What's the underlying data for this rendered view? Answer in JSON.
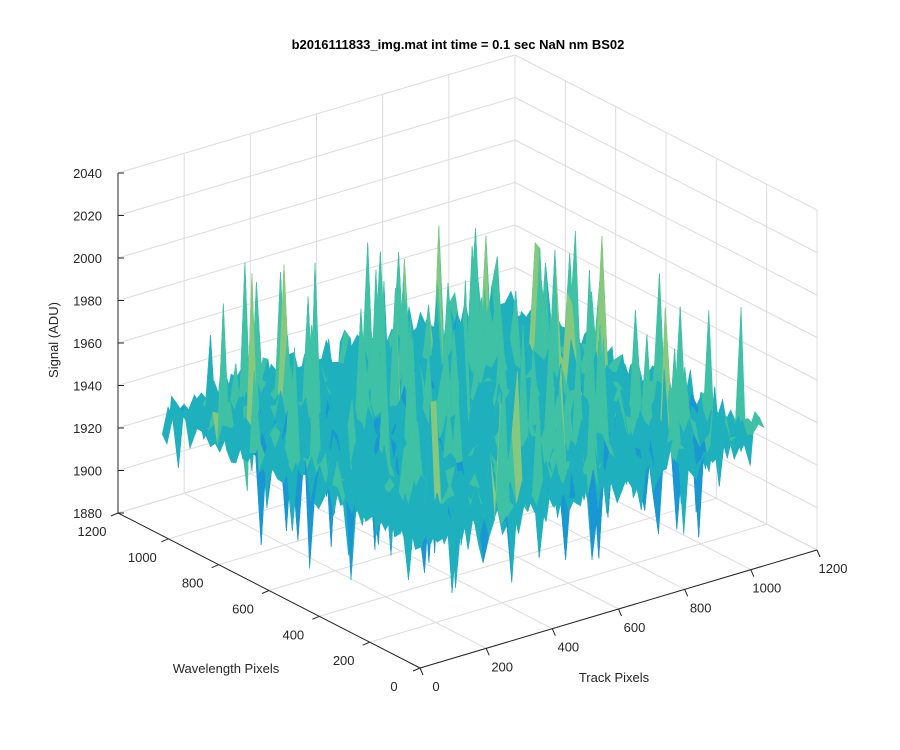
{
  "chart_data": {
    "type": "surface",
    "title": "b2016111833_img.mat int time = 0.1 sec  NaN nm BS02",
    "xlabel": "Track Pixels",
    "ylabel": "Wavelength Pixels",
    "zlabel": "Signal (ADU)",
    "xlim": [
      0,
      1200
    ],
    "ylim": [
      0,
      1200
    ],
    "zlim": [
      1880,
      2040
    ],
    "x_ticks": [
      "0",
      "200",
      "400",
      "600",
      "800",
      "1000",
      "1200"
    ],
    "y_ticks": [
      "0",
      "200",
      "400",
      "600",
      "800",
      "1000",
      "1200"
    ],
    "z_ticks": [
      "1880",
      "1900",
      "1920",
      "1940",
      "1960",
      "1980",
      "2000",
      "2020",
      "2040"
    ],
    "grid": true,
    "data_extent": {
      "x": [
        0,
        1040
      ],
      "y": [
        0,
        1024
      ]
    },
    "baseline_signal": 1940,
    "min_signal": 1890,
    "max_signal": 2020,
    "colormap": [
      "#0b72c9",
      "#1997d2",
      "#1fb0bd",
      "#3ec1a5",
      "#86c87e",
      "#c6c35c"
    ]
  }
}
